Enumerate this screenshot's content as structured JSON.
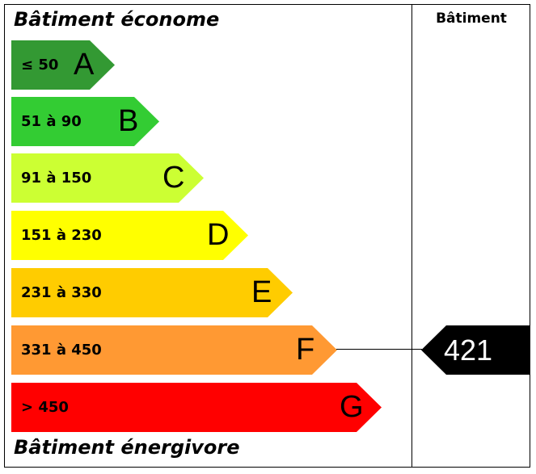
{
  "title_top": "Bâtiment économe",
  "title_bottom": "Bâtiment énergivore",
  "column_header": "Bâtiment",
  "bands": [
    {
      "letter": "A",
      "range": "≤ 50",
      "color": "#339933"
    },
    {
      "letter": "B",
      "range": "51 à 90",
      "color": "#33cc33"
    },
    {
      "letter": "C",
      "range": "91 à 150",
      "color": "#ccff33"
    },
    {
      "letter": "D",
      "range": "151 à 230",
      "color": "#ffff00"
    },
    {
      "letter": "E",
      "range": "231 à 330",
      "color": "#ffcc00"
    },
    {
      "letter": "F",
      "range": "331 à 450",
      "color": "#ff9933"
    },
    {
      "letter": "G",
      "range": "> 450",
      "color": "#ff0000"
    }
  ],
  "indicator": {
    "value": "421",
    "band": "F",
    "color": "#000000"
  }
}
